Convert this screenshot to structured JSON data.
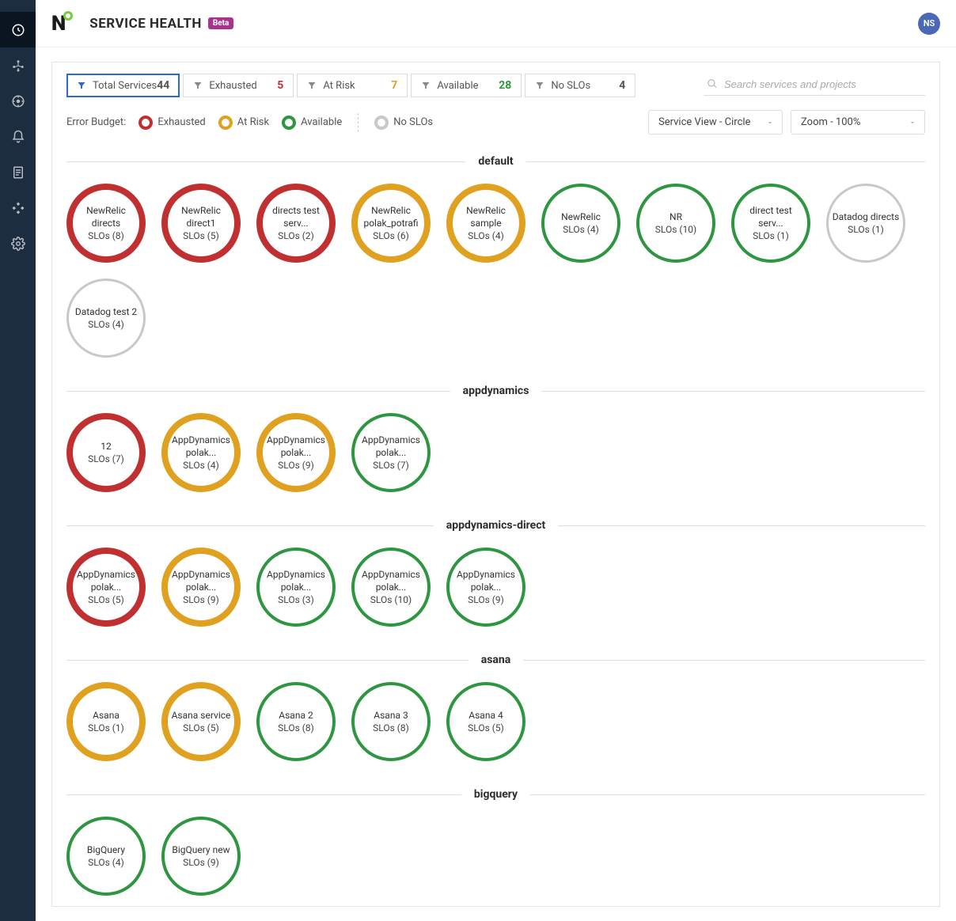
{
  "header": {
    "title": "SERVICE HEALTH",
    "beta_label": "Beta",
    "avatar_initials": "NS"
  },
  "colors": {
    "exhausted": "#c13030",
    "at_risk": "#e0a020",
    "available": "#2e9640",
    "no_slos": "#c8c8c8",
    "sidebar_bg": "#1c2d3f",
    "accent": "#2969d6"
  },
  "filters": [
    {
      "id": "total",
      "label": "Total Services",
      "count": "44",
      "count_class": "",
      "active": true
    },
    {
      "id": "exhausted",
      "label": "Exhausted",
      "count": "5",
      "count_class": "red",
      "active": false
    },
    {
      "id": "atrisk",
      "label": "At Risk",
      "count": "7",
      "count_class": "amber",
      "active": false
    },
    {
      "id": "available",
      "label": "Available",
      "count": "28",
      "count_class": "green",
      "active": false
    },
    {
      "id": "noslos",
      "label": "No SLOs",
      "count": "4",
      "count_class": "",
      "active": false
    }
  ],
  "search": {
    "placeholder": "Search services and projects"
  },
  "legend": {
    "title": "Error Budget:",
    "items": [
      {
        "label": "Exhausted",
        "ring": "red"
      },
      {
        "label": "At Risk",
        "ring": "amber"
      },
      {
        "label": "Available",
        "ring": "green"
      },
      {
        "label": "No SLOs",
        "ring": "gray"
      }
    ]
  },
  "selects": {
    "view": "Service View - Circle",
    "zoom": "Zoom - 100%"
  },
  "sections": [
    {
      "name": "default",
      "circles": [
        {
          "status": "red",
          "line1": "NewRelic",
          "line2": "directs",
          "slos": 8
        },
        {
          "status": "red",
          "line1": "NewRelic",
          "line2": "direct1",
          "slos": 5
        },
        {
          "status": "red",
          "line1": "directs test",
          "line2": "serv...",
          "slos": 2
        },
        {
          "status": "amber",
          "line1": "NewRelic",
          "line2": "polak_potrafi",
          "slos": 6
        },
        {
          "status": "amber",
          "line1": "NewRelic",
          "line2": "sample",
          "slos": 4
        },
        {
          "status": "green",
          "line1": "NewRelic",
          "line2": "",
          "slos": 4
        },
        {
          "status": "green",
          "line1": "NR",
          "line2": "",
          "slos": 10
        },
        {
          "status": "green",
          "line1": "direct test",
          "line2": "serv...",
          "slos": 1
        },
        {
          "status": "gray",
          "line1": "Datadog directs",
          "line2": "",
          "slos": 1
        },
        {
          "status": "gray",
          "line1": "Datadog test 2",
          "line2": "",
          "slos": 4
        }
      ]
    },
    {
      "name": "appdynamics",
      "circles": [
        {
          "status": "red",
          "line1": "12",
          "line2": "",
          "slos": 7
        },
        {
          "status": "amber",
          "line1": "AppDynamics",
          "line2": "polak...",
          "slos": 4
        },
        {
          "status": "amber",
          "line1": "AppDynamics",
          "line2": "polak...",
          "slos": 9
        },
        {
          "status": "green",
          "line1": "AppDynamics",
          "line2": "polak...",
          "slos": 7
        }
      ]
    },
    {
      "name": "appdynamics-direct",
      "circles": [
        {
          "status": "red",
          "line1": "AppDynamics",
          "line2": "polak...",
          "slos": 5
        },
        {
          "status": "amber",
          "line1": "AppDynamics",
          "line2": "polak...",
          "slos": 9
        },
        {
          "status": "green",
          "line1": "AppDynamics",
          "line2": "polak...",
          "slos": 3
        },
        {
          "status": "green",
          "line1": "AppDynamics",
          "line2": "polak...",
          "slos": 10
        },
        {
          "status": "green",
          "line1": "AppDynamics",
          "line2": "polak...",
          "slos": 9
        }
      ]
    },
    {
      "name": "asana",
      "circles": [
        {
          "status": "amber",
          "line1": "Asana",
          "line2": "",
          "slos": 1
        },
        {
          "status": "amber",
          "line1": "Asana service",
          "line2": "",
          "slos": 5
        },
        {
          "status": "green",
          "line1": "Asana 2",
          "line2": "",
          "slos": 8
        },
        {
          "status": "green",
          "line1": "Asana 3",
          "line2": "",
          "slos": 8
        },
        {
          "status": "green",
          "line1": "Asana 4",
          "line2": "",
          "slos": 5
        }
      ]
    },
    {
      "name": "bigquery",
      "circles": [
        {
          "status": "green",
          "line1": "BigQuery",
          "line2": "",
          "slos": 4
        },
        {
          "status": "green",
          "line1": "BigQuery new",
          "line2": "",
          "slos": 9
        }
      ]
    }
  ]
}
